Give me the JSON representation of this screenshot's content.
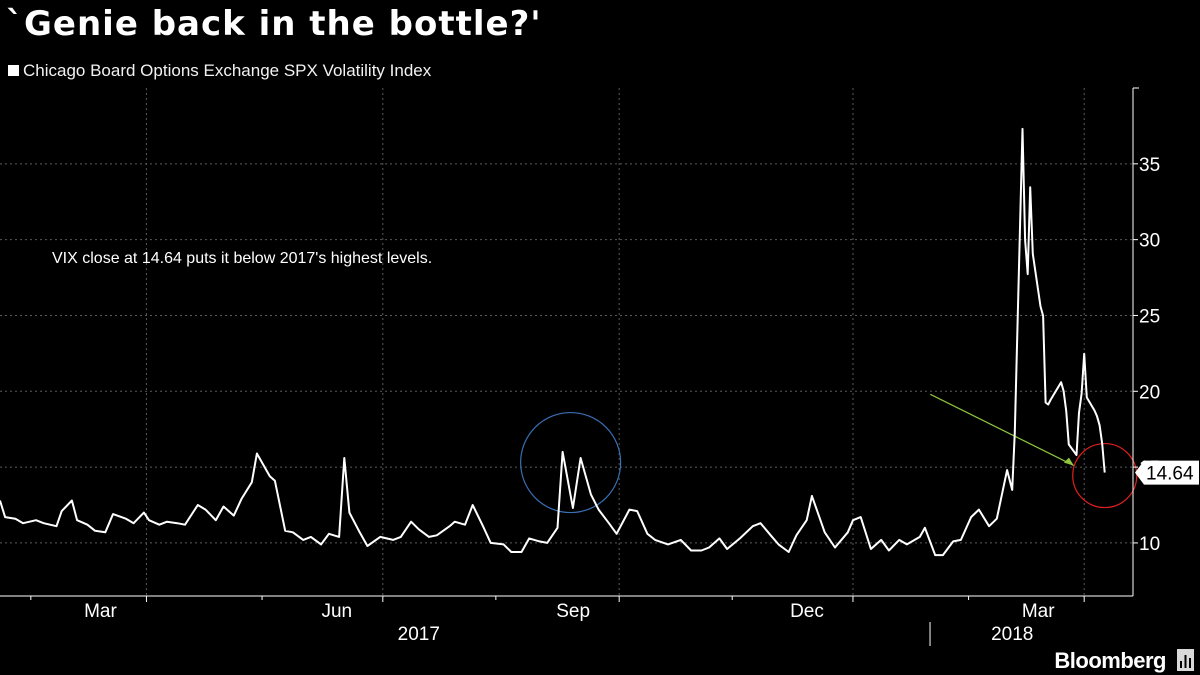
{
  "title": "`Genie back in the bottle?'",
  "legend_label": "Chicago Board Options Exchange SPX Volatility Index",
  "brand": "Bloomberg",
  "colors": {
    "background": "#000000",
    "series": "#ffffff",
    "grid": "#5a5a5a",
    "circle_2017": "#3a6fb3",
    "circle_latest": "#e21f1f",
    "arrow": "#8ec63f"
  },
  "chart_data": {
    "type": "line",
    "title": "`Genie back in the bottle?'",
    "xlabel": "",
    "ylabel": "",
    "ylim": [
      6.5,
      40
    ],
    "yticks": [
      10,
      15,
      20,
      25,
      30,
      35
    ],
    "ytick_labels": [
      "10",
      "15",
      "20",
      "25",
      "30",
      "35"
    ],
    "xlim": [
      "2017-01-03",
      "2018-03-20"
    ],
    "xtick_labels": [
      {
        "date": "2017-03-01",
        "label": "Mar"
      },
      {
        "date": "2017-06-01",
        "label": "Jun"
      },
      {
        "date": "2017-09-01",
        "label": "Sep"
      },
      {
        "date": "2017-12-01",
        "label": "Dec"
      },
      {
        "date": "2018-03-01",
        "label": "Mar"
      }
    ],
    "year_labels": [
      {
        "date": "2017-06-15",
        "label": "2017"
      },
      {
        "date": "2018-02-01",
        "label": "2018"
      }
    ],
    "grid": true,
    "last_value_label": "14.64",
    "annotation": "VIX close at 14.64 puts it below 2017's highest levels.",
    "series": [
      {
        "name": "Chicago Board Options Exchange SPX Volatility Index",
        "points": [
          [
            "2017-01-03",
            12.8
          ],
          [
            "2017-01-05",
            11.7
          ],
          [
            "2017-01-09",
            11.6
          ],
          [
            "2017-01-12",
            11.3
          ],
          [
            "2017-01-17",
            11.5
          ],
          [
            "2017-01-20",
            11.3
          ],
          [
            "2017-01-25",
            11.1
          ],
          [
            "2017-01-27",
            12.1
          ],
          [
            "2017-01-31",
            12.8
          ],
          [
            "2017-02-02",
            11.5
          ],
          [
            "2017-02-06",
            11.2
          ],
          [
            "2017-02-09",
            10.8
          ],
          [
            "2017-02-13",
            10.7
          ],
          [
            "2017-02-16",
            11.9
          ],
          [
            "2017-02-21",
            11.6
          ],
          [
            "2017-02-24",
            11.3
          ],
          [
            "2017-02-28",
            12.0
          ],
          [
            "2017-03-02",
            11.5
          ],
          [
            "2017-03-06",
            11.2
          ],
          [
            "2017-03-09",
            11.4
          ],
          [
            "2017-03-13",
            11.3
          ],
          [
            "2017-03-16",
            11.2
          ],
          [
            "2017-03-21",
            12.5
          ],
          [
            "2017-03-24",
            12.2
          ],
          [
            "2017-03-28",
            11.5
          ],
          [
            "2017-03-31",
            12.4
          ],
          [
            "2017-04-04",
            11.8
          ],
          [
            "2017-04-07",
            12.9
          ],
          [
            "2017-04-11",
            14.0
          ],
          [
            "2017-04-13",
            15.9
          ],
          [
            "2017-04-18",
            14.4
          ],
          [
            "2017-04-20",
            14.1
          ],
          [
            "2017-04-24",
            10.8
          ],
          [
            "2017-04-27",
            10.7
          ],
          [
            "2017-05-01",
            10.2
          ],
          [
            "2017-05-04",
            10.4
          ],
          [
            "2017-05-08",
            9.9
          ],
          [
            "2017-05-11",
            10.6
          ],
          [
            "2017-05-15",
            10.4
          ],
          [
            "2017-05-17",
            15.6
          ],
          [
            "2017-05-19",
            12.0
          ],
          [
            "2017-05-23",
            10.7
          ],
          [
            "2017-05-26",
            9.8
          ],
          [
            "2017-05-31",
            10.4
          ],
          [
            "2017-06-05",
            10.2
          ],
          [
            "2017-06-08",
            10.4
          ],
          [
            "2017-06-12",
            11.4
          ],
          [
            "2017-06-15",
            10.9
          ],
          [
            "2017-06-19",
            10.4
          ],
          [
            "2017-06-22",
            10.5
          ],
          [
            "2017-06-27",
            11.1
          ],
          [
            "2017-06-29",
            11.4
          ],
          [
            "2017-07-03",
            11.2
          ],
          [
            "2017-07-06",
            12.5
          ],
          [
            "2017-07-10",
            11.1
          ],
          [
            "2017-07-13",
            10.0
          ],
          [
            "2017-07-18",
            9.9
          ],
          [
            "2017-07-21",
            9.4
          ],
          [
            "2017-07-25",
            9.4
          ],
          [
            "2017-07-28",
            10.3
          ],
          [
            "2017-08-01",
            10.1
          ],
          [
            "2017-08-04",
            10.0
          ],
          [
            "2017-08-08",
            11.0
          ],
          [
            "2017-08-10",
            16.0
          ],
          [
            "2017-08-14",
            12.3
          ],
          [
            "2017-08-17",
            15.6
          ],
          [
            "2017-08-21",
            13.2
          ],
          [
            "2017-08-24",
            12.2
          ],
          [
            "2017-08-28",
            11.3
          ],
          [
            "2017-08-31",
            10.6
          ],
          [
            "2017-09-05",
            12.2
          ],
          [
            "2017-09-08",
            12.1
          ],
          [
            "2017-09-12",
            10.6
          ],
          [
            "2017-09-15",
            10.2
          ],
          [
            "2017-09-20",
            9.9
          ],
          [
            "2017-09-25",
            10.2
          ],
          [
            "2017-09-29",
            9.5
          ],
          [
            "2017-10-03",
            9.5
          ],
          [
            "2017-10-06",
            9.7
          ],
          [
            "2017-10-10",
            10.3
          ],
          [
            "2017-10-13",
            9.6
          ],
          [
            "2017-10-18",
            10.3
          ],
          [
            "2017-10-23",
            11.1
          ],
          [
            "2017-10-26",
            11.3
          ],
          [
            "2017-10-30",
            10.5
          ],
          [
            "2017-11-02",
            9.9
          ],
          [
            "2017-11-06",
            9.4
          ],
          [
            "2017-11-09",
            10.5
          ],
          [
            "2017-11-13",
            11.5
          ],
          [
            "2017-11-15",
            13.1
          ],
          [
            "2017-11-20",
            10.7
          ],
          [
            "2017-11-24",
            9.7
          ],
          [
            "2017-11-29",
            10.7
          ],
          [
            "2017-12-01",
            11.5
          ],
          [
            "2017-12-04",
            11.7
          ],
          [
            "2017-12-08",
            9.6
          ],
          [
            "2017-12-12",
            10.2
          ],
          [
            "2017-12-15",
            9.5
          ],
          [
            "2017-12-19",
            10.2
          ],
          [
            "2017-12-22",
            9.9
          ],
          [
            "2017-12-27",
            10.4
          ],
          [
            "2017-12-29",
            11.0
          ],
          [
            "2018-01-02",
            9.2
          ],
          [
            "2018-01-05",
            9.2
          ],
          [
            "2018-01-09",
            10.1
          ],
          [
            "2018-01-12",
            10.2
          ],
          [
            "2018-01-16",
            11.7
          ],
          [
            "2018-01-19",
            12.2
          ],
          [
            "2018-01-23",
            11.1
          ],
          [
            "2018-01-26",
            11.6
          ],
          [
            "2018-01-30",
            14.8
          ],
          [
            "2018-02-01",
            13.5
          ],
          [
            "2018-02-02",
            17.3
          ],
          [
            "2018-02-05",
            37.3
          ],
          [
            "2018-02-06",
            29.98
          ],
          [
            "2018-02-07",
            27.73
          ],
          [
            "2018-02-08",
            33.46
          ],
          [
            "2018-02-09",
            29.06
          ],
          [
            "2018-02-12",
            25.6
          ],
          [
            "2018-02-13",
            24.97
          ],
          [
            "2018-02-14",
            19.26
          ],
          [
            "2018-02-15",
            19.13
          ],
          [
            "2018-02-16",
            19.46
          ],
          [
            "2018-02-20",
            20.6
          ],
          [
            "2018-02-21",
            20.02
          ],
          [
            "2018-02-22",
            18.72
          ],
          [
            "2018-02-23",
            16.49
          ],
          [
            "2018-02-26",
            15.8
          ],
          [
            "2018-02-27",
            18.59
          ],
          [
            "2018-02-28",
            19.85
          ],
          [
            "2018-03-01",
            22.47
          ],
          [
            "2018-03-02",
            19.59
          ],
          [
            "2018-03-05",
            18.73
          ],
          [
            "2018-03-06",
            18.36
          ],
          [
            "2018-03-07",
            17.76
          ],
          [
            "2018-03-08",
            16.54
          ],
          [
            "2018-03-09",
            14.64
          ]
        ]
      }
    ]
  }
}
